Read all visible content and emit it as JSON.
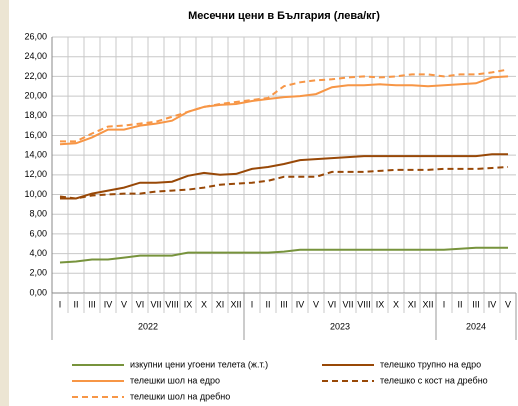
{
  "chart_data": {
    "type": "line",
    "title": "Месечни цени в България (лева/кг)",
    "categories": [
      "I",
      "II",
      "III",
      "IV",
      "V",
      "VI",
      "VII",
      "VIII",
      "IX",
      "X",
      "XI",
      "XII",
      "I",
      "II",
      "III",
      "IV",
      "V",
      "VI",
      "VII",
      "VIII",
      "IX",
      "X",
      "XI",
      "XII",
      "I",
      "II",
      "III",
      "IV",
      "V"
    ],
    "groups": [
      {
        "label": "2022",
        "size": 12
      },
      {
        "label": "2023",
        "size": 12
      },
      {
        "label": "2024",
        "size": 5
      }
    ],
    "ylim": [
      0,
      26
    ],
    "yticks": [
      {
        "value": 0,
        "label": "0,00"
      },
      {
        "value": 2,
        "label": "2,00"
      },
      {
        "value": 4,
        "label": "4,00"
      },
      {
        "value": 6,
        "label": "6,00"
      },
      {
        "value": 8,
        "label": "8,00"
      },
      {
        "value": 10,
        "label": "10,00"
      },
      {
        "value": 12,
        "label": "12,00"
      },
      {
        "value": 14,
        "label": "14,00"
      },
      {
        "value": 16,
        "label": "16,00"
      },
      {
        "value": 18,
        "label": "18,00"
      },
      {
        "value": 20,
        "label": "20,00"
      },
      {
        "value": 22,
        "label": "22,00"
      },
      {
        "value": 24,
        "label": "24,00"
      },
      {
        "value": 26,
        "label": "26,00"
      }
    ],
    "grid": true,
    "series": [
      {
        "name": "изкупни цени угоени телета (ж.т.)",
        "color": "#77933c",
        "dashed": false,
        "values": [
          3.1,
          3.2,
          3.4,
          3.4,
          3.6,
          3.8,
          3.8,
          3.8,
          4.1,
          4.1,
          4.1,
          4.1,
          4.1,
          4.1,
          4.2,
          4.4,
          4.4,
          4.4,
          4.4,
          4.4,
          4.4,
          4.4,
          4.4,
          4.4,
          4.4,
          4.5,
          4.6,
          4.6,
          4.6
        ]
      },
      {
        "name": "телешко трупно на едро",
        "color": "#984807",
        "dashed": false,
        "values": [
          9.6,
          9.6,
          10.1,
          10.4,
          10.7,
          11.2,
          11.2,
          11.3,
          11.9,
          12.2,
          12.0,
          12.1,
          12.6,
          12.8,
          13.1,
          13.5,
          13.6,
          13.7,
          13.8,
          13.9,
          13.9,
          13.9,
          13.9,
          13.9,
          13.9,
          13.9,
          13.9,
          14.1,
          14.1
        ]
      },
      {
        "name": "телешки шол на едро",
        "color": "#f79646",
        "dashed": false,
        "values": [
          15.1,
          15.2,
          15.8,
          16.6,
          16.6,
          17.0,
          17.2,
          17.5,
          18.4,
          18.9,
          19.1,
          19.2,
          19.5,
          19.7,
          19.9,
          20.0,
          20.2,
          20.9,
          21.1,
          21.1,
          21.2,
          21.1,
          21.1,
          21.0,
          21.1,
          21.2,
          21.3,
          21.9,
          22.0
        ]
      },
      {
        "name": "телешко с кост на дребно",
        "color": "#984807",
        "dashed": true,
        "values": [
          9.8,
          9.6,
          9.9,
          10.0,
          10.1,
          10.1,
          10.3,
          10.4,
          10.5,
          10.7,
          11.0,
          11.1,
          11.2,
          11.4,
          11.8,
          11.8,
          11.8,
          12.3,
          12.3,
          12.3,
          12.4,
          12.5,
          12.5,
          12.5,
          12.6,
          12.6,
          12.6,
          12.7,
          12.8
        ]
      },
      {
        "name": "телешки шол на дребно",
        "color": "#f79646",
        "dashed": true,
        "values": [
          15.4,
          15.4,
          16.2,
          16.9,
          17.0,
          17.2,
          17.4,
          17.9,
          18.4,
          18.9,
          19.2,
          19.4,
          19.6,
          19.8,
          21.0,
          21.4,
          21.6,
          21.7,
          21.9,
          22.0,
          21.9,
          22.0,
          22.2,
          22.2,
          22.0,
          22.2,
          22.2,
          22.4,
          22.7
        ]
      }
    ]
  }
}
